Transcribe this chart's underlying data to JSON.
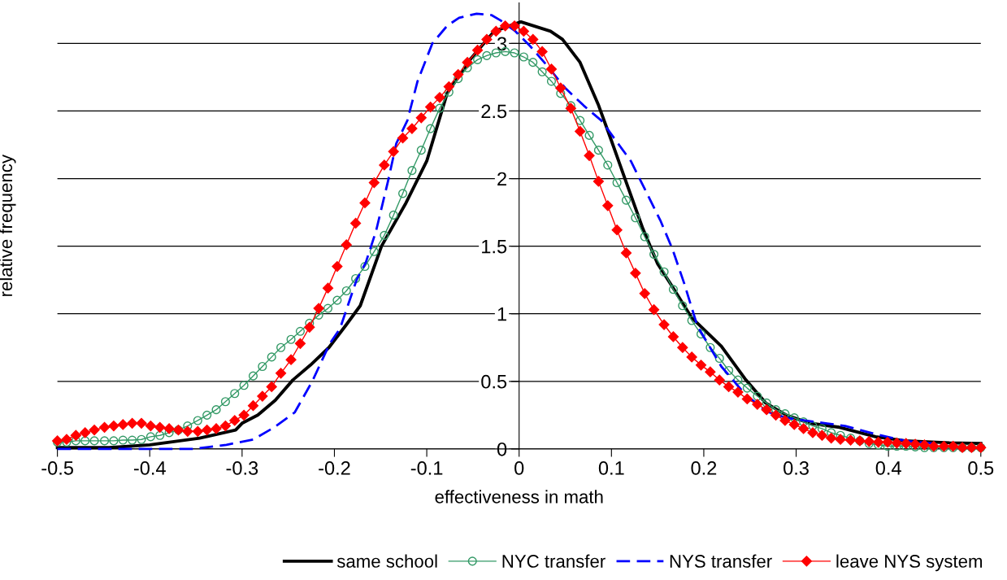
{
  "chart_data": {
    "type": "line",
    "xlabel": "effectiveness in math",
    "ylabel": "relative frequency",
    "xlim": [
      -0.5,
      0.5
    ],
    "xticks": [
      -0.5,
      -0.4,
      -0.3,
      -0.2,
      -0.1,
      0,
      0.1,
      0.2,
      0.3,
      0.4,
      0.5
    ],
    "ylim": [
      0,
      3.3
    ],
    "yticks": [
      0,
      0.5,
      1,
      1.5,
      2,
      2.5,
      3
    ],
    "grid": "y",
    "legend": "bottom",
    "series": [
      {
        "name": "same school",
        "color": "#000000",
        "line_style": "solid",
        "marker": "none",
        "x": [
          -0.5,
          -0.444,
          -0.4,
          -0.346,
          -0.307,
          -0.3,
          -0.283,
          -0.264,
          -0.245,
          -0.226,
          -0.206,
          -0.187,
          -0.172,
          -0.149,
          -0.1225,
          -0.1,
          -0.078,
          -0.052,
          -0.027,
          0.002,
          0.034,
          0.047,
          0.066,
          0.0856,
          0.1,
          0.1146,
          0.134,
          0.15,
          0.166,
          0.187,
          0.219,
          0.2445,
          0.267,
          0.2895,
          0.315,
          0.347,
          0.386,
          0.418,
          0.466,
          0.5
        ],
        "values": [
          0.01,
          0.01,
          0.03,
          0.08,
          0.14,
          0.19,
          0.25,
          0.36,
          0.51,
          0.62,
          0.75,
          0.92,
          1.06,
          1.5,
          1.82,
          2.13,
          2.63,
          2.89,
          3.09,
          3.16,
          3.09,
          3.03,
          2.86,
          2.55,
          2.28,
          2.0,
          1.63,
          1.37,
          1.2,
          0.97,
          0.76,
          0.52,
          0.34,
          0.25,
          0.19,
          0.16,
          0.09,
          0.06,
          0.045,
          0.04
        ]
      },
      {
        "name": "NYC transfer",
        "color": "#339966",
        "line_style": "solid",
        "marker": "circle",
        "x": [
          -0.5,
          -0.49,
          -0.48,
          -0.47,
          -0.46,
          -0.449,
          -0.439,
          -0.429,
          -0.419,
          -0.409,
          -0.399,
          -0.389,
          -0.379,
          -0.369,
          -0.359,
          -0.348,
          -0.338,
          -0.328,
          -0.318,
          -0.308,
          -0.298,
          -0.288,
          -0.278,
          -0.268,
          -0.258,
          -0.247,
          -0.237,
          -0.227,
          -0.217,
          -0.207,
          -0.197,
          -0.187,
          -0.177,
          -0.167,
          -0.157,
          -0.146,
          -0.136,
          -0.126,
          -0.116,
          -0.106,
          -0.096,
          -0.086,
          -0.076,
          -0.066,
          -0.056,
          -0.045,
          -0.035,
          -0.025,
          -0.015,
          -0.005,
          0.005,
          0.015,
          0.025,
          0.035,
          0.045,
          0.056,
          0.066,
          0.076,
          0.086,
          0.096,
          0.106,
          0.116,
          0.126,
          0.136,
          0.146,
          0.157,
          0.167,
          0.177,
          0.187,
          0.197,
          0.207,
          0.217,
          0.227,
          0.237,
          0.247,
          0.258,
          0.268,
          0.278,
          0.288,
          0.298,
          0.308,
          0.318,
          0.328,
          0.338,
          0.348,
          0.359,
          0.369,
          0.379,
          0.389,
          0.399,
          0.409,
          0.419,
          0.429,
          0.439,
          0.449,
          0.46,
          0.47,
          0.48,
          0.49,
          0.5
        ],
        "values": [
          0.05,
          0.05,
          0.06,
          0.06,
          0.06,
          0.06,
          0.06,
          0.065,
          0.065,
          0.07,
          0.09,
          0.1,
          0.12,
          0.14,
          0.17,
          0.21,
          0.25,
          0.29,
          0.35,
          0.41,
          0.47,
          0.54,
          0.61,
          0.68,
          0.75,
          0.81,
          0.87,
          0.93,
          0.99,
          1.04,
          1.1,
          1.17,
          1.26,
          1.35,
          1.46,
          1.58,
          1.73,
          1.89,
          2.06,
          2.21,
          2.37,
          2.52,
          2.64,
          2.74,
          2.82,
          2.88,
          2.91,
          2.93,
          2.94,
          2.93,
          2.9,
          2.86,
          2.79,
          2.72,
          2.63,
          2.54,
          2.43,
          2.32,
          2.21,
          2.1,
          1.97,
          1.84,
          1.71,
          1.57,
          1.44,
          1.31,
          1.18,
          1.06,
          0.95,
          0.85,
          0.75,
          0.67,
          0.58,
          0.51,
          0.45,
          0.39,
          0.34,
          0.29,
          0.26,
          0.23,
          0.2,
          0.17,
          0.15,
          0.12,
          0.1,
          0.08,
          0.06,
          0.04,
          0.03,
          0.02,
          0.02,
          0.02,
          0.015,
          0.01,
          0.01,
          0.01,
          0.01,
          0.01,
          0.01,
          0.01
        ]
      },
      {
        "name": "NYS transfer",
        "color": "#0000ff",
        "line_style": "dashed",
        "marker": "none",
        "x": [
          -0.5,
          -0.353,
          -0.317,
          -0.288,
          -0.265,
          -0.243,
          -0.224,
          -0.205,
          -0.194,
          -0.176,
          -0.166,
          -0.155,
          -0.142,
          -0.133,
          -0.121,
          -0.11,
          -0.094,
          -0.078,
          -0.065,
          -0.046,
          -0.03,
          -0.02,
          -0.004,
          0.012,
          0.031,
          0.05,
          0.07,
          0.089,
          0.105,
          0.121,
          0.137,
          0.153,
          0.166,
          0.179,
          0.193,
          0.219,
          0.244,
          0.267,
          0.289,
          0.321,
          0.353,
          0.386,
          0.418,
          0.45
        ],
        "values": [
          0.0,
          0.0,
          0.03,
          0.07,
          0.16,
          0.27,
          0.5,
          0.78,
          0.89,
          1.25,
          1.38,
          1.61,
          1.98,
          2.26,
          2.43,
          2.72,
          3.0,
          3.13,
          3.19,
          3.22,
          3.21,
          3.17,
          3.09,
          2.98,
          2.83,
          2.67,
          2.54,
          2.43,
          2.28,
          2.13,
          1.91,
          1.69,
          1.48,
          1.22,
          0.91,
          0.61,
          0.41,
          0.28,
          0.23,
          0.2,
          0.17,
          0.11,
          0.06,
          0.04
        ]
      },
      {
        "name": "leave NYS system",
        "color": "#ff0000",
        "line_style": "solid",
        "marker": "diamond",
        "x": [
          -0.5,
          -0.49,
          -0.48,
          -0.47,
          -0.46,
          -0.449,
          -0.439,
          -0.429,
          -0.419,
          -0.409,
          -0.399,
          -0.389,
          -0.379,
          -0.369,
          -0.359,
          -0.348,
          -0.338,
          -0.328,
          -0.318,
          -0.308,
          -0.298,
          -0.288,
          -0.278,
          -0.268,
          -0.258,
          -0.247,
          -0.237,
          -0.227,
          -0.217,
          -0.207,
          -0.197,
          -0.187,
          -0.177,
          -0.167,
          -0.157,
          -0.146,
          -0.136,
          -0.126,
          -0.116,
          -0.106,
          -0.096,
          -0.086,
          -0.076,
          -0.066,
          -0.056,
          -0.045,
          -0.035,
          -0.025,
          -0.015,
          -0.005,
          0.005,
          0.015,
          0.025,
          0.035,
          0.045,
          0.056,
          0.066,
          0.076,
          0.086,
          0.096,
          0.106,
          0.116,
          0.126,
          0.136,
          0.146,
          0.157,
          0.167,
          0.177,
          0.187,
          0.197,
          0.207,
          0.217,
          0.227,
          0.237,
          0.247,
          0.258,
          0.268,
          0.278,
          0.288,
          0.298,
          0.308,
          0.318,
          0.328,
          0.338,
          0.348,
          0.359,
          0.369,
          0.379,
          0.389,
          0.399,
          0.409,
          0.419,
          0.429,
          0.439,
          0.449,
          0.46,
          0.47,
          0.48,
          0.49,
          0.5
        ],
        "values": [
          0.06,
          0.07,
          0.1,
          0.12,
          0.14,
          0.16,
          0.17,
          0.18,
          0.19,
          0.19,
          0.17,
          0.16,
          0.15,
          0.14,
          0.13,
          0.13,
          0.14,
          0.15,
          0.17,
          0.21,
          0.25,
          0.32,
          0.39,
          0.46,
          0.56,
          0.66,
          0.78,
          0.9,
          1.04,
          1.19,
          1.35,
          1.51,
          1.67,
          1.82,
          1.97,
          2.1,
          2.2,
          2.3,
          2.37,
          2.45,
          2.53,
          2.6,
          2.68,
          2.77,
          2.86,
          2.95,
          3.03,
          3.09,
          3.13,
          3.13,
          3.09,
          3.03,
          2.94,
          2.81,
          2.67,
          2.52,
          2.35,
          2.17,
          1.98,
          1.8,
          1.62,
          1.45,
          1.3,
          1.15,
          1.03,
          0.92,
          0.83,
          0.75,
          0.68,
          0.62,
          0.57,
          0.51,
          0.46,
          0.42,
          0.37,
          0.33,
          0.29,
          0.25,
          0.21,
          0.18,
          0.15,
          0.12,
          0.1,
          0.08,
          0.07,
          0.065,
          0.06,
          0.055,
          0.05,
          0.05,
          0.044,
          0.04,
          0.035,
          0.03,
          0.02,
          0.02,
          0.02,
          0.01,
          0.01,
          0.01
        ]
      }
    ]
  }
}
